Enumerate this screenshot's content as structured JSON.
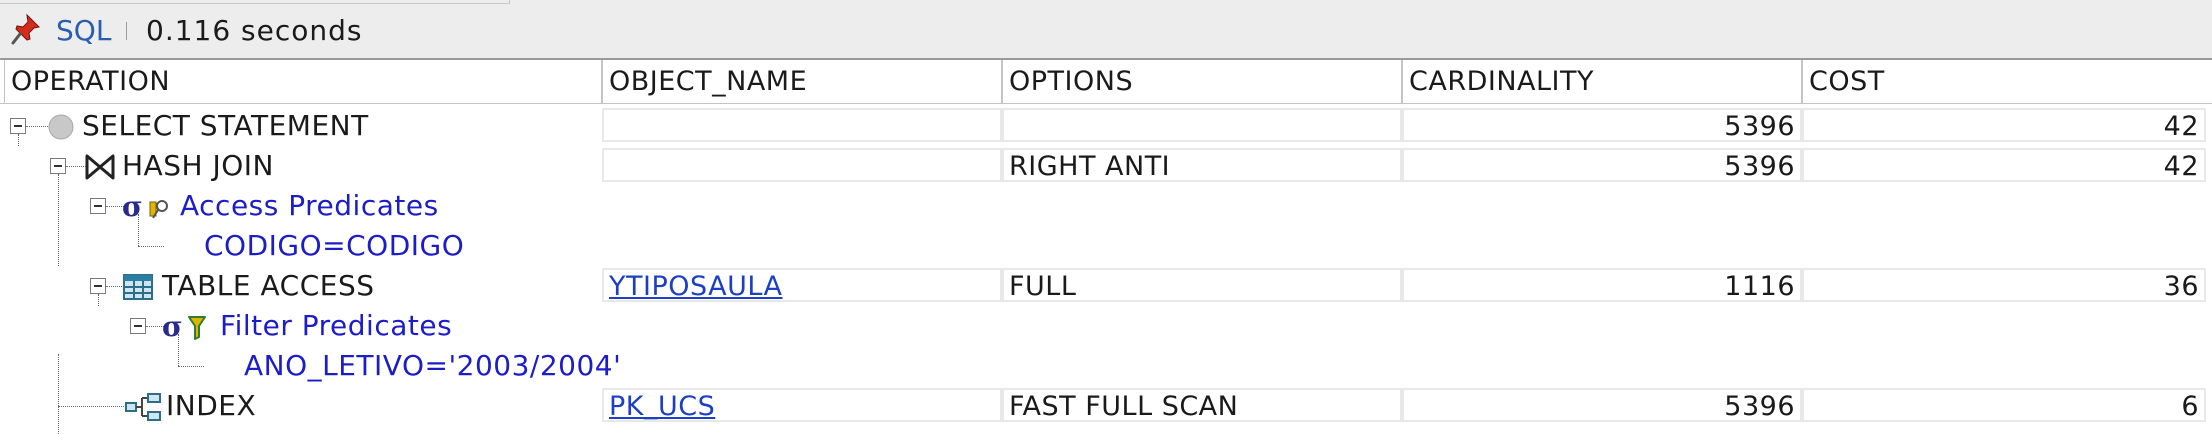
{
  "toolbar": {
    "tab_label": "SQL",
    "elapsed": "0.116 seconds",
    "icon": "pin-icon"
  },
  "columns": [
    "OPERATION",
    "OBJECT_NAME",
    "OPTIONS",
    "CARDINALITY",
    "COST"
  ],
  "rows": [
    {
      "operation": "SELECT STATEMENT",
      "icon": "select-statement-icon",
      "object_name": "",
      "options": "",
      "cardinality": "5396",
      "cost": "42"
    },
    {
      "operation": "HASH JOIN",
      "icon": "hash-join-icon",
      "object_name": "",
      "options": "RIGHT ANTI",
      "cardinality": "5396",
      "cost": "42"
    },
    {
      "operation": "Access Predicates",
      "icon": "access-predicates-icon"
    },
    {
      "operation": "CODIGO=CODIGO"
    },
    {
      "operation": "TABLE ACCESS",
      "icon": "table-icon",
      "object_name": "YTIPOSAULA",
      "options": "FULL",
      "cardinality": "1116",
      "cost": "36"
    },
    {
      "operation": "Filter Predicates",
      "icon": "filter-predicates-icon"
    },
    {
      "operation": "ANO_LETIVO='2003/2004'"
    },
    {
      "operation": "INDEX",
      "icon": "index-icon",
      "object_name": "PK_UCS",
      "options": "FAST FULL SCAN",
      "cardinality": "5396",
      "cost": "6"
    }
  ],
  "colors": {
    "predicate_text": "#1d1dc8",
    "link": "#1d3fc4",
    "sql_tab": "#2a5db0"
  }
}
